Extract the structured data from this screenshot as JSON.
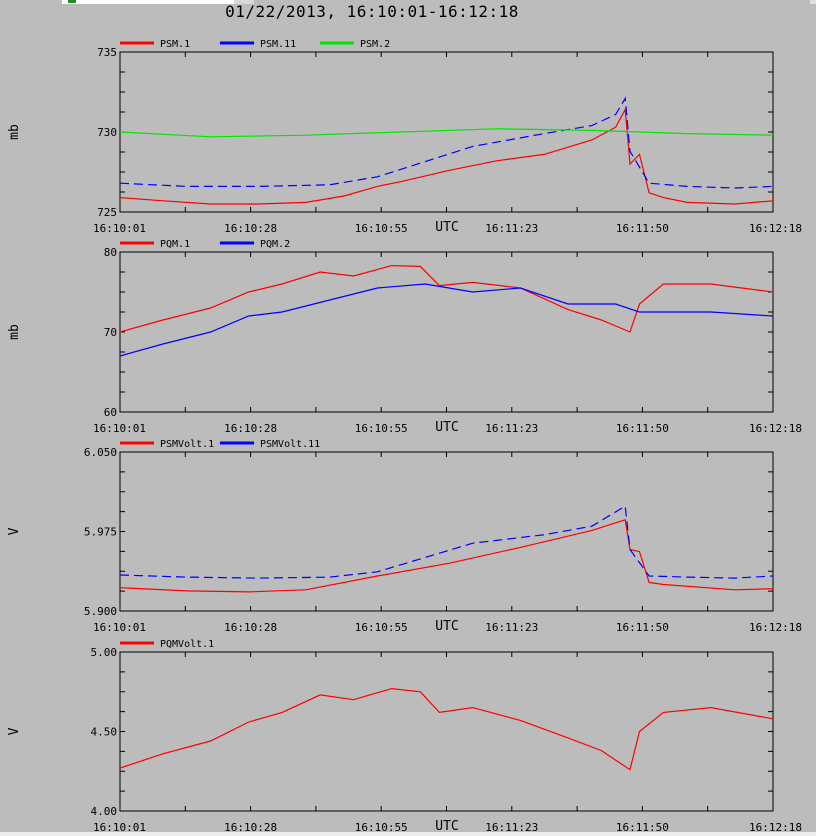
{
  "title": "01/22/2013, 16:10:01-16:12:18",
  "colors": {
    "red": "#ff0000",
    "blue": "#0000ff",
    "green": "#00e600",
    "bg": "#bcbcbc"
  },
  "chart_data": [
    {
      "type": "line",
      "ylabel": "mb",
      "xlabel": "UTC",
      "ylim": [
        725,
        735
      ],
      "yticks": [
        "725",
        "730",
        "735"
      ],
      "xticks": [
        "16:10:01",
        "16:10:28",
        "16:10:55",
        "16:11:23",
        "16:11:50",
        "16:12:18"
      ],
      "series": [
        {
          "name": "PSM.1",
          "color": "#ff0000",
          "style": "line",
          "x": [
            "16:10:01",
            "16:10:10",
            "16:10:20",
            "16:10:30",
            "16:10:40",
            "16:10:48",
            "16:10:55",
            "16:11:00",
            "16:11:10",
            "16:11:20",
            "16:11:30",
            "16:11:40",
            "16:11:45",
            "16:11:47",
            "16:11:48",
            "16:11:50",
            "16:11:52",
            "16:11:55",
            "16:12:00",
            "16:12:10",
            "16:12:18"
          ],
          "values": [
            725.9,
            725.7,
            725.5,
            725.5,
            725.6,
            726.0,
            726.6,
            726.9,
            727.6,
            728.2,
            728.6,
            729.5,
            730.3,
            731.4,
            728.0,
            728.6,
            726.2,
            725.9,
            725.6,
            725.5,
            725.7
          ]
        },
        {
          "name": "PSM.11",
          "color": "#0000ff",
          "style": "dashed",
          "x": [
            "16:10:01",
            "16:10:15",
            "16:10:30",
            "16:10:45",
            "16:10:55",
            "16:11:15",
            "16:11:30",
            "16:11:40",
            "16:11:45",
            "16:11:47",
            "16:11:48",
            "16:11:52",
            "16:12:00",
            "16:12:10",
            "16:12:18"
          ],
          "values": [
            726.8,
            726.6,
            726.6,
            726.7,
            727.2,
            729.1,
            729.9,
            730.4,
            731.1,
            732.1,
            728.8,
            726.8,
            726.6,
            726.5,
            726.6
          ]
        },
        {
          "name": "PSM.2",
          "color": "#00e600",
          "style": "line",
          "x": [
            "16:10:01",
            "16:10:20",
            "16:10:40",
            "16:11:00",
            "16:11:20",
            "16:11:40",
            "16:12:00",
            "16:12:18"
          ],
          "values": [
            730.0,
            729.7,
            729.8,
            730.0,
            730.2,
            730.1,
            729.9,
            729.8
          ]
        }
      ]
    },
    {
      "type": "line",
      "ylabel": "mb",
      "xlabel": "UTC",
      "ylim": [
        60,
        80
      ],
      "yticks": [
        "60",
        "70",
        "80"
      ],
      "xticks": [
        "16:10:01",
        "16:10:28",
        "16:10:55",
        "16:11:23",
        "16:11:50",
        "16:12:18"
      ],
      "series": [
        {
          "name": "PQM.1",
          "color": "#ff0000",
          "style": "line",
          "x": [
            "16:10:01",
            "16:10:10",
            "16:10:20",
            "16:10:28",
            "16:10:35",
            "16:10:43",
            "16:10:50",
            "16:10:58",
            "16:11:04",
            "16:11:08",
            "16:11:15",
            "16:11:25",
            "16:11:35",
            "16:11:42",
            "16:11:48",
            "16:11:50",
            "16:11:55",
            "16:12:05",
            "16:12:18"
          ],
          "values": [
            70.0,
            71.5,
            73.0,
            75.0,
            76.0,
            77.5,
            77.0,
            78.3,
            78.2,
            75.8,
            76.2,
            75.5,
            72.8,
            71.5,
            70.0,
            73.5,
            76.0,
            76.0,
            75.0
          ]
        },
        {
          "name": "PQM.2",
          "color": "#0000ff",
          "style": "line",
          "x": [
            "16:10:01",
            "16:10:10",
            "16:10:20",
            "16:10:28",
            "16:10:35",
            "16:10:45",
            "16:10:55",
            "16:11:05",
            "16:11:15",
            "16:11:25",
            "16:11:35",
            "16:11:45",
            "16:11:50",
            "16:12:05",
            "16:12:18"
          ],
          "values": [
            67.0,
            68.5,
            70.0,
            72.0,
            72.5,
            74.0,
            75.5,
            76.0,
            75.0,
            75.5,
            73.5,
            73.5,
            72.5,
            72.5,
            72.0
          ]
        }
      ]
    },
    {
      "type": "line",
      "ylabel": "V",
      "xlabel": "UTC",
      "ylim": [
        5.9,
        6.05
      ],
      "yticks": [
        "5.900",
        "5.975",
        "6.050"
      ],
      "xticks": [
        "16:10:01",
        "16:10:28",
        "16:10:55",
        "16:11:23",
        "16:11:50",
        "16:12:18"
      ],
      "series": [
        {
          "name": "PSMVolt.1",
          "color": "#ff0000",
          "style": "line",
          "x": [
            "16:10:01",
            "16:10:15",
            "16:10:28",
            "16:10:40",
            "16:10:55",
            "16:11:10",
            "16:11:25",
            "16:11:40",
            "16:11:47",
            "16:11:48",
            "16:11:50",
            "16:11:52",
            "16:11:55",
            "16:12:10",
            "16:12:18"
          ],
          "values": [
            5.922,
            5.919,
            5.918,
            5.92,
            5.933,
            5.945,
            5.96,
            5.976,
            5.986,
            5.958,
            5.956,
            5.927,
            5.925,
            5.92,
            5.921
          ]
        },
        {
          "name": "PSMVolt.11",
          "color": "#0000ff",
          "style": "dashed",
          "x": [
            "16:10:01",
            "16:10:15",
            "16:10:30",
            "16:10:45",
            "16:10:55",
            "16:11:15",
            "16:11:30",
            "16:11:40",
            "16:11:47",
            "16:11:48",
            "16:11:52",
            "16:12:00",
            "16:12:10",
            "16:12:18"
          ],
          "values": [
            5.934,
            5.932,
            5.931,
            5.932,
            5.937,
            5.964,
            5.972,
            5.98,
            5.999,
            5.958,
            5.933,
            5.932,
            5.931,
            5.933
          ]
        }
      ]
    },
    {
      "type": "line",
      "ylabel": "V",
      "xlabel": "UTC",
      "ylim": [
        4.0,
        5.0
      ],
      "yticks": [
        "4.00",
        "4.50",
        "5.00"
      ],
      "xticks": [
        "16:10:01",
        "16:10:28",
        "16:10:55",
        "16:11:23",
        "16:11:50",
        "16:12:18"
      ],
      "series": [
        {
          "name": "PQMVolt.1",
          "color": "#ff0000",
          "style": "line",
          "x": [
            "16:10:01",
            "16:10:10",
            "16:10:20",
            "16:10:28",
            "16:10:35",
            "16:10:43",
            "16:10:50",
            "16:10:58",
            "16:11:04",
            "16:11:08",
            "16:11:15",
            "16:11:25",
            "16:11:35",
            "16:11:42",
            "16:11:48",
            "16:11:50",
            "16:11:55",
            "16:12:05",
            "16:12:18"
          ],
          "values": [
            4.27,
            4.36,
            4.44,
            4.56,
            4.62,
            4.73,
            4.7,
            4.77,
            4.75,
            4.62,
            4.65,
            4.57,
            4.46,
            4.38,
            4.26,
            4.5,
            4.62,
            4.65,
            4.58
          ]
        }
      ]
    }
  ]
}
